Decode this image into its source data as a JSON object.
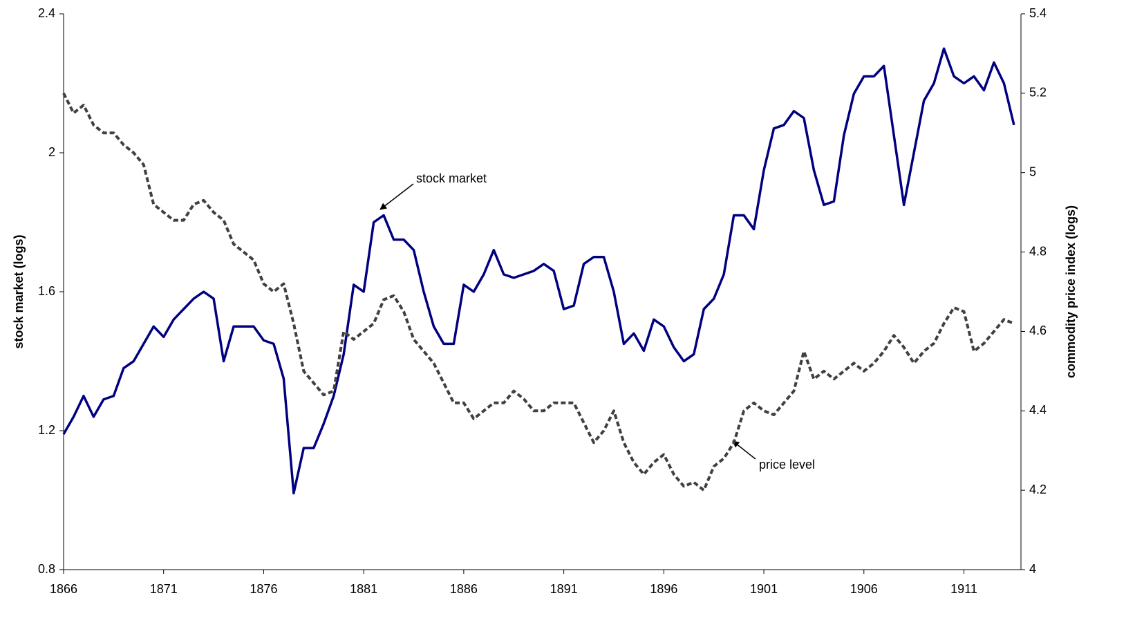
{
  "chart_data": {
    "type": "line",
    "y_label": "stock market (logs)",
    "y2_label": "commodity price index (logs)",
    "annotations": [
      "stock market",
      "price level"
    ],
    "x": [
      1866,
      1866.5,
      1867,
      1867.5,
      1868,
      1868.5,
      1869,
      1869.5,
      1870,
      1870.5,
      1871,
      1871.5,
      1872,
      1872.5,
      1873,
      1873.5,
      1874,
      1874.5,
      1875,
      1875.5,
      1876,
      1876.5,
      1877,
      1877.5,
      1878,
      1878.5,
      1879,
      1879.5,
      1880,
      1880.5,
      1881,
      1881.5,
      1882,
      1882.5,
      1883,
      1883.5,
      1884,
      1884.5,
      1885,
      1885.5,
      1886,
      1886.5,
      1887,
      1887.5,
      1888,
      1888.5,
      1889,
      1889.5,
      1890,
      1890.5,
      1891,
      1891.5,
      1892,
      1892.5,
      1893,
      1893.5,
      1894,
      1894.5,
      1895,
      1895.5,
      1896,
      1896.5,
      1897,
      1897.5,
      1898,
      1898.5,
      1899,
      1899.5,
      1900,
      1900.5,
      1901,
      1901.5,
      1902,
      1902.5,
      1903,
      1903.5,
      1904,
      1904.5,
      1905,
      1905.5,
      1906,
      1906.5,
      1907,
      1907.5,
      1908,
      1908.5,
      1909,
      1909.5,
      1910,
      1910.5,
      1911,
      1911.5,
      1912,
      1912.5,
      1913,
      1913.5
    ],
    "series": [
      {
        "name": "stock market",
        "color": "#000080",
        "style": "solid",
        "values": [
          1.19,
          1.24,
          1.3,
          1.24,
          1.29,
          1.3,
          1.38,
          1.4,
          1.45,
          1.5,
          1.47,
          1.52,
          1.55,
          1.58,
          1.6,
          1.58,
          1.4,
          1.5,
          1.5,
          1.5,
          1.46,
          1.45,
          1.35,
          1.02,
          1.15,
          1.15,
          1.22,
          1.3,
          1.42,
          1.62,
          1.6,
          1.8,
          1.82,
          1.75,
          1.75,
          1.72,
          1.6,
          1.5,
          1.45,
          1.45,
          1.62,
          1.6,
          1.65,
          1.72,
          1.65,
          1.64,
          1.65,
          1.66,
          1.68,
          1.66,
          1.55,
          1.56,
          1.68,
          1.7,
          1.7,
          1.6,
          1.45,
          1.48,
          1.43,
          1.52,
          1.5,
          1.44,
          1.4,
          1.42,
          1.55,
          1.58,
          1.65,
          1.82,
          1.82,
          1.78,
          1.95,
          2.07,
          2.08,
          2.12,
          2.1,
          1.95,
          1.85,
          1.86,
          2.05,
          2.17,
          2.22,
          2.22,
          2.25,
          2.05,
          1.85,
          2.0,
          2.15,
          2.2,
          2.3,
          2.22,
          2.2,
          2.22,
          2.18,
          2.26,
          2.2,
          2.08
        ]
      },
      {
        "name": "price level",
        "color": "#404040",
        "style": "dashed",
        "axis": "y2",
        "values": [
          5.2,
          5.15,
          5.17,
          5.12,
          5.1,
          5.1,
          5.07,
          5.05,
          5.02,
          4.92,
          4.9,
          4.88,
          4.88,
          4.92,
          4.93,
          4.9,
          4.88,
          4.82,
          4.8,
          4.78,
          4.72,
          4.7,
          4.72,
          4.62,
          4.5,
          4.47,
          4.44,
          4.45,
          4.6,
          4.58,
          4.6,
          4.62,
          4.68,
          4.69,
          4.65,
          4.58,
          4.55,
          4.52,
          4.47,
          4.42,
          4.42,
          4.38,
          4.4,
          4.42,
          4.42,
          4.45,
          4.43,
          4.4,
          4.4,
          4.42,
          4.42,
          4.42,
          4.37,
          4.32,
          4.35,
          4.4,
          4.32,
          4.27,
          4.24,
          4.27,
          4.29,
          4.24,
          4.21,
          4.22,
          4.2,
          4.26,
          4.28,
          4.32,
          4.4,
          4.42,
          4.4,
          4.39,
          4.42,
          4.45,
          4.55,
          4.48,
          4.5,
          4.48,
          4.5,
          4.52,
          4.5,
          4.52,
          4.55,
          4.59,
          4.56,
          4.52,
          4.55,
          4.57,
          4.62,
          4.66,
          4.65,
          4.55,
          4.57,
          4.6,
          4.63,
          4.62
        ]
      }
    ],
    "xlim": [
      1866,
      1913.85
    ],
    "xticks": [
      1866,
      1871,
      1876,
      1881,
      1886,
      1891,
      1896,
      1901,
      1906,
      1911
    ],
    "ylim": [
      0.8,
      2.4
    ],
    "yticks": [
      0.8,
      1.2,
      1.6,
      2,
      2.4
    ],
    "y2lim": [
      4,
      5.4
    ],
    "y2ticks": [
      4,
      4.2,
      4.4,
      4.6,
      4.8,
      5,
      5.2,
      5.4
    ],
    "grid": false
  }
}
